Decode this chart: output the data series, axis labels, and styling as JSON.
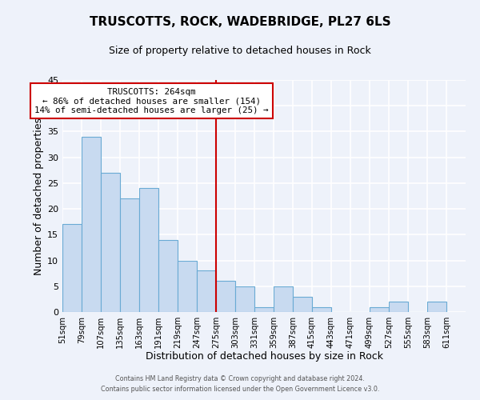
{
  "title": "TRUSCOTTS, ROCK, WADEBRIDGE, PL27 6LS",
  "subtitle": "Size of property relative to detached houses in Rock",
  "xlabel": "Distribution of detached houses by size in Rock",
  "ylabel": "Number of detached properties",
  "bar_color": "#c8daf0",
  "bar_edge_color": "#6aaad4",
  "vline_color": "#cc0000",
  "annotation_title": "TRUSCOTTS: 264sqm",
  "annotation_line1": "← 86% of detached houses are smaller (154)",
  "annotation_line2": "14% of semi-detached houses are larger (25) →",
  "annotation_box_color": "white",
  "annotation_box_edge": "#cc0000",
  "bins_start": [
    51,
    79,
    107,
    135,
    163,
    191,
    219,
    247,
    275,
    303,
    331,
    359,
    387,
    415,
    443,
    471,
    499,
    527,
    555,
    583
  ],
  "bin_width": 28,
  "values": [
    17,
    34,
    27,
    22,
    24,
    14,
    10,
    8,
    6,
    5,
    1,
    5,
    3,
    1,
    0,
    0,
    1,
    2,
    0,
    2
  ],
  "xlim_left": 51,
  "xlim_right": 639,
  "ylim_top": 45,
  "ylim_bottom": 0,
  "tick_labels": [
    "51sqm",
    "79sqm",
    "107sqm",
    "135sqm",
    "163sqm",
    "191sqm",
    "219sqm",
    "247sqm",
    "275sqm",
    "303sqm",
    "331sqm",
    "359sqm",
    "387sqm",
    "415sqm",
    "443sqm",
    "471sqm",
    "499sqm",
    "527sqm",
    "555sqm",
    "583sqm",
    "611sqm"
  ],
  "tick_positions": [
    51,
    79,
    107,
    135,
    163,
    191,
    219,
    247,
    275,
    303,
    331,
    359,
    387,
    415,
    443,
    471,
    499,
    527,
    555,
    583,
    611
  ],
  "footer1": "Contains HM Land Registry data © Crown copyright and database right 2024.",
  "footer2": "Contains public sector information licensed under the Open Government Licence v3.0.",
  "background_color": "#eef2fa"
}
